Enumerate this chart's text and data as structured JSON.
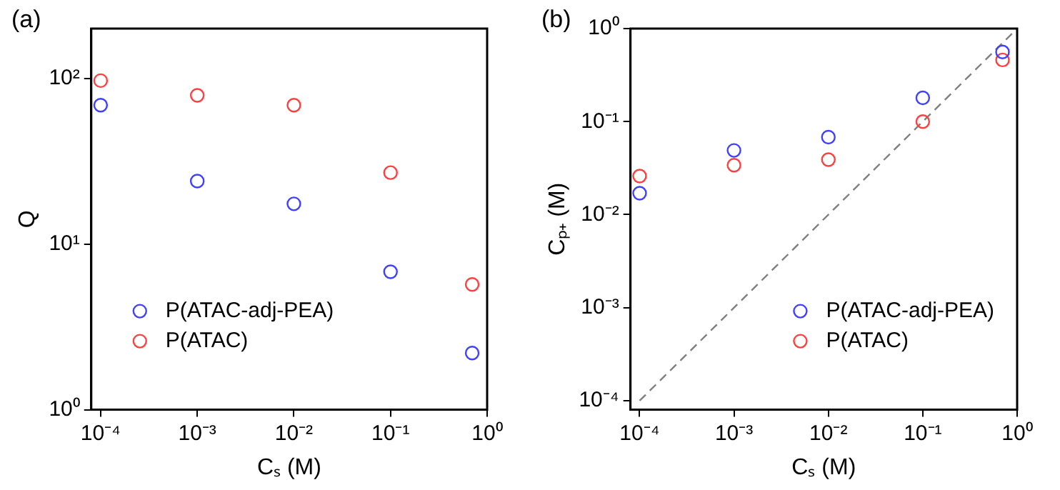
{
  "chart_data": [
    {
      "type": "scatter",
      "title": "(a)",
      "xlabel": "Cₛ (M)",
      "ylabel": "Q",
      "log": "xy",
      "marker": "circle",
      "legend": "bottom left",
      "grid": false,
      "xlim": [
        8e-05,
        1
      ],
      "xticks": [
        {
          "value": 0.0001,
          "label": "10⁻⁴"
        },
        {
          "value": 0.001,
          "label": "10⁻³"
        },
        {
          "value": 0.01,
          "label": "10⁻²"
        },
        {
          "value": 0.1,
          "label": "10⁻¹"
        },
        {
          "value": 1,
          "label": "10⁰"
        }
      ],
      "ylim": [
        1,
        200
      ],
      "yticks": [
        {
          "value": 1,
          "label": "10⁰"
        },
        {
          "value": 10,
          "label": "10¹"
        },
        {
          "value": 100,
          "label": "10²"
        }
      ],
      "x": [
        0.0001,
        0.001,
        0.01,
        0.1,
        0.7
      ],
      "series": [
        {
          "name": "P(ATAC-adj-PEA)",
          "color": "#4040ff",
          "values": [
            69,
            24,
            17.5,
            6.8,
            2.2
          ]
        },
        {
          "name": "P(ATAC)",
          "color": "#ff4040",
          "values": [
            97,
            79,
            69,
            27,
            5.7
          ]
        }
      ]
    },
    {
      "type": "scatter",
      "title": "(b)",
      "xlabel": "Cₛ (M)",
      "ylabel": "Cₚ₊ (M)",
      "log": "xy",
      "marker": "circle",
      "legend": "bottom right",
      "grid": false,
      "xlim": [
        8e-05,
        1
      ],
      "xticks": [
        {
          "value": 0.0001,
          "label": "10⁻⁴"
        },
        {
          "value": 0.001,
          "label": "10⁻³"
        },
        {
          "value": 0.01,
          "label": "10⁻²"
        },
        {
          "value": 0.1,
          "label": "10⁻¹"
        },
        {
          "value": 1,
          "label": "10⁰"
        }
      ],
      "ylim": [
        8e-05,
        1
      ],
      "yticks": [
        {
          "value": 0.0001,
          "label": "10⁻⁴"
        },
        {
          "value": 0.001,
          "label": "10⁻³"
        },
        {
          "value": 0.01,
          "label": "10⁻²"
        },
        {
          "value": 0.1,
          "label": "10⁻¹"
        },
        {
          "value": 1,
          "label": "10⁰"
        }
      ],
      "x": [
        0.0001,
        0.001,
        0.01,
        0.1,
        0.7
      ],
      "series": [
        {
          "name": "P(ATAC-adj-PEA)",
          "color": "#4040ff",
          "values": [
            0.017,
            0.049,
            0.068,
            0.18,
            0.56
          ]
        },
        {
          "name": "P(ATAC)",
          "color": "#ff4040",
          "values": [
            0.026,
            0.034,
            0.039,
            0.1,
            0.46
          ]
        },
        {
          "type": "line",
          "color": "#808080",
          "line_style": "dashed",
          "marker": "none",
          "x": [
            0.0001,
            1
          ],
          "values": [
            0.0001,
            1
          ]
        }
      ]
    }
  ]
}
